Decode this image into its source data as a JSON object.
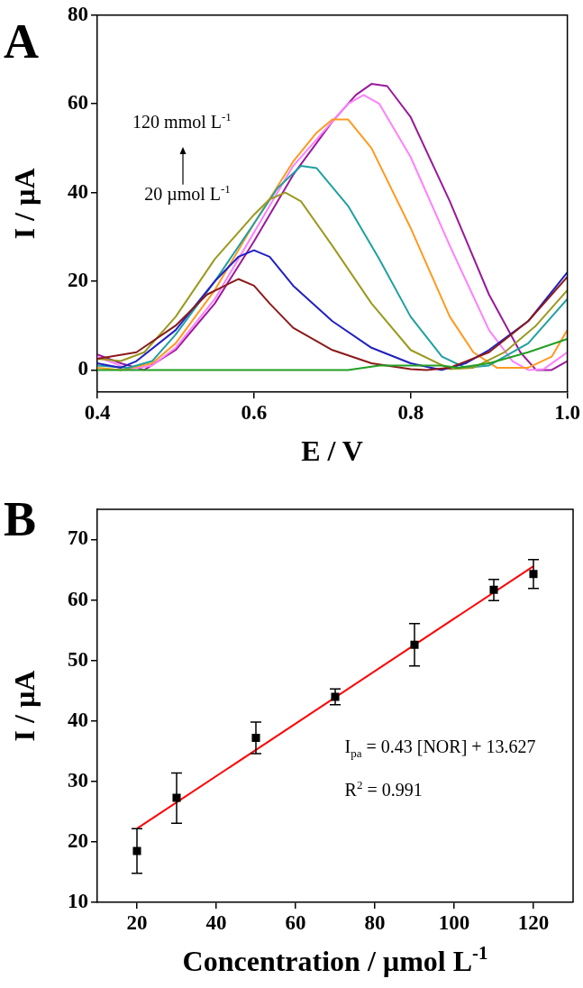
{
  "chart_data": [
    {
      "type": "line",
      "title": "A",
      "xlabel": "E / V",
      "ylabel": "I / µA",
      "marker": "none",
      "xlim": [
        0.4,
        1.0
      ],
      "ylim": [
        -5,
        80
      ],
      "xticks": [
        0.4,
        0.6,
        0.8,
        {
          "value": 1.0,
          "label": "1.0"
        }
      ],
      "yticks": [
        0,
        20,
        40,
        60,
        80
      ],
      "annotations": [
        "120 mmol L$^{-1}$",
        "20 µmol L$^{-1}$"
      ],
      "series": [
        {
          "color": "#22a022",
          "x": [
            0.4,
            0.72,
            0.76,
            0.84,
            0.86,
            0.9,
            0.95,
            1.0
          ],
          "values": [
            0,
            0,
            1,
            1,
            0.5,
            1.5,
            4,
            7
          ]
        },
        {
          "color": "#8b1a1a",
          "x": [
            0.4,
            0.45,
            0.5,
            0.54,
            0.58,
            0.6,
            0.62,
            0.65,
            0.7,
            0.75,
            0.8,
            0.82,
            0.85,
            0.9,
            0.95,
            1.0
          ],
          "values": [
            2.5,
            4,
            10,
            17,
            20.5,
            19,
            15,
            9.5,
            4.5,
            1.5,
            0.2,
            0,
            0.5,
            4,
            11,
            21
          ]
        },
        {
          "color": "#2020c0",
          "x": [
            0.4,
            0.43,
            0.45,
            0.5,
            0.55,
            0.58,
            0.6,
            0.62,
            0.65,
            0.7,
            0.75,
            0.8,
            0.84,
            0.87,
            0.9,
            0.95,
            1.0
          ],
          "values": [
            1.5,
            0.5,
            2,
            9,
            20,
            25.5,
            27,
            25.5,
            19,
            11,
            5,
            1.5,
            0,
            1.5,
            4.5,
            11,
            22
          ]
        },
        {
          "color": "#9a9a20",
          "x": [
            0.4,
            0.43,
            0.46,
            0.5,
            0.55,
            0.6,
            0.62,
            0.64,
            0.66,
            0.7,
            0.75,
            0.8,
            0.85,
            0.88,
            0.92,
            0.96,
            1.0
          ],
          "values": [
            2.5,
            2,
            4,
            12,
            25,
            35,
            38.5,
            40,
            38,
            28,
            15,
            4.5,
            0.2,
            0.5,
            4,
            10,
            18
          ]
        },
        {
          "color": "#20a0a0",
          "x": [
            0.4,
            0.44,
            0.47,
            0.5,
            0.55,
            0.6,
            0.63,
            0.66,
            0.68,
            0.72,
            0.76,
            0.8,
            0.84,
            0.87,
            0.9,
            0.95,
            1.0
          ],
          "values": [
            1,
            0.5,
            2,
            8,
            20,
            33,
            41,
            46,
            45.5,
            37,
            25,
            12,
            3,
            0.5,
            1,
            6,
            16
          ]
        },
        {
          "color": "#ff9a20",
          "x": [
            0.4,
            0.43,
            0.47,
            0.5,
            0.55,
            0.6,
            0.65,
            0.68,
            0.7,
            0.72,
            0.75,
            0.8,
            0.85,
            0.88,
            0.91,
            0.95,
            0.98,
            1.0
          ],
          "values": [
            0.5,
            0,
            1.5,
            6,
            18,
            33,
            47,
            53.5,
            56.5,
            56.5,
            50,
            32,
            12,
            4,
            0.5,
            0.5,
            3,
            9
          ]
        },
        {
          "color": "#ff80ff",
          "x": [
            0.4,
            0.44,
            0.47,
            0.5,
            0.55,
            0.6,
            0.65,
            0.7,
            0.72,
            0.74,
            0.76,
            0.8,
            0.85,
            0.9,
            0.93,
            0.95,
            0.97,
            1.0
          ],
          "values": [
            3,
            0.2,
            1,
            5,
            16,
            31,
            46,
            56,
            60,
            62,
            60,
            48,
            28,
            9,
            2,
            0,
            0.2,
            4
          ]
        },
        {
          "color": "#9a1a9a",
          "x": [
            0.4,
            0.43,
            0.46,
            0.5,
            0.55,
            0.6,
            0.65,
            0.7,
            0.73,
            0.75,
            0.77,
            0.8,
            0.85,
            0.9,
            0.94,
            0.96,
            0.98,
            1.0
          ],
          "values": [
            3.5,
            1.5,
            0,
            4.5,
            15,
            29,
            44,
            56,
            62,
            64.5,
            64,
            57,
            38,
            17,
            4,
            0,
            0,
            2
          ]
        }
      ]
    },
    {
      "type": "scatter",
      "title": "B",
      "xlabel": "Concentration / µmol L$^{-1}$",
      "ylabel": "I / µA",
      "xlim": [
        10,
        130
      ],
      "ylim": [
        10,
        75
      ],
      "xticks": [
        20,
        40,
        60,
        80,
        100,
        120
      ],
      "yticks": [
        10,
        20,
        30,
        40,
        50,
        60,
        70
      ],
      "annotations": [
        "I$_{pa}$ = 0.43 [NOR] + 13.627",
        "R$^{2}$ = 0.991"
      ],
      "series": [
        {
          "marker": "square",
          "color": "#000000",
          "x": [
            20,
            30,
            50,
            70,
            90,
            110,
            120
          ],
          "values": [
            18.5,
            27.3,
            37.2,
            44,
            52.6,
            61.7,
            64.3
          ],
          "errors": [
            [
              14.8,
              22.2
            ],
            [
              23.1,
              31.4
            ],
            [
              34.6,
              39.8
            ],
            [
              42.7,
              45.3
            ],
            [
              49.1,
              56.1
            ],
            [
              59.9,
              63.4
            ],
            [
              61.9,
              66.7
            ]
          ]
        },
        {
          "type": "line",
          "marker": "none",
          "color": "#ff0000",
          "x": [
            20,
            120
          ],
          "values": [
            22.2,
            65.6
          ]
        }
      ]
    }
  ]
}
